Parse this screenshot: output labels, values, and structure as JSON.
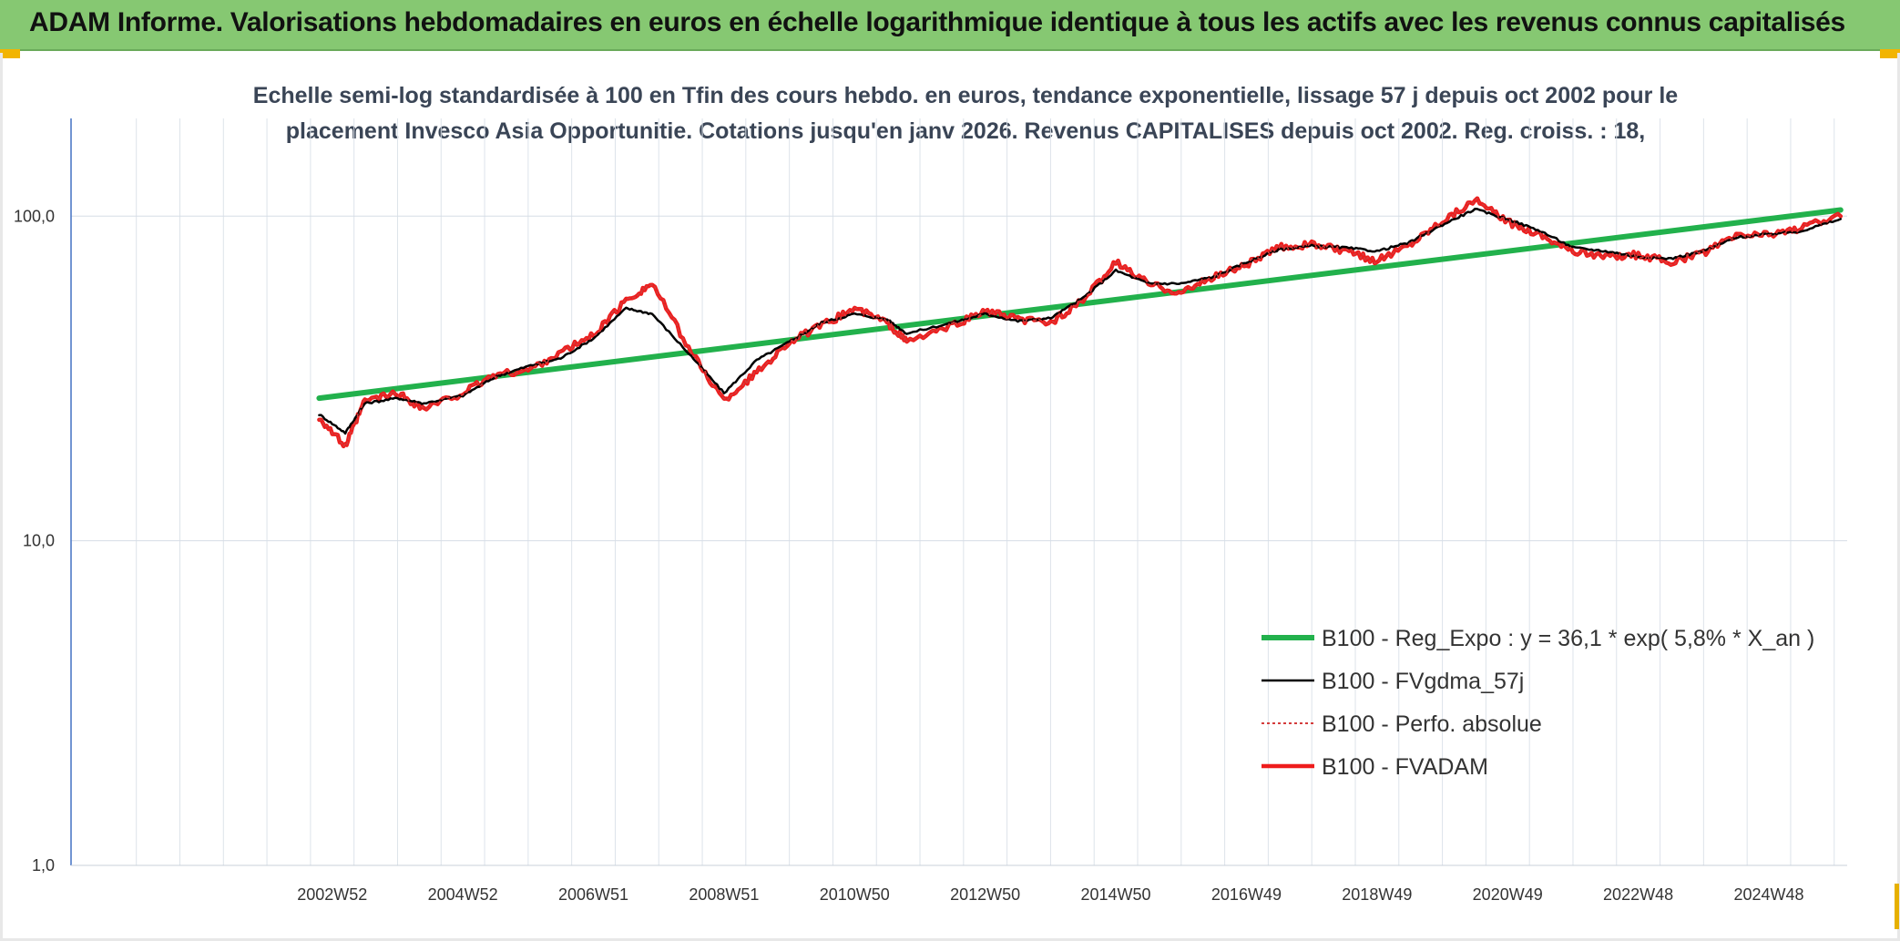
{
  "banner": {
    "title": "ADAM Informe. Valorisations hebdomadaires en euros en échelle logarithmique identique à tous les actifs avec les revenus connus capitalisés"
  },
  "chart_data": {
    "type": "line",
    "title_line1": "Echelle semi-log standardisée à 100 en Tfin des cours hebdo. en euros, tendance exponentielle, lissage 57 j depuis oct 2002 pour le",
    "title_line2": "placement Invesco Asia Opportunitie. Cotations jusqu'en janv 2026. Revenus CAPITALISES depuis oct 2002. Reg. croiss. : 18,",
    "y_scale": "log",
    "ylim": [
      1,
      200
    ],
    "y_ticks": [
      {
        "value": 1,
        "label": "1,0"
      },
      {
        "value": 10,
        "label": "10,0"
      },
      {
        "value": 100,
        "label": "100,0"
      }
    ],
    "xlim": [
      1999.0,
      2026.2
    ],
    "x_ticks": [
      {
        "x": 2003.0,
        "label": "2002W52"
      },
      {
        "x": 2005.0,
        "label": "2004W52"
      },
      {
        "x": 2007.0,
        "label": "2006W51"
      },
      {
        "x": 2009.0,
        "label": "2008W51"
      },
      {
        "x": 2011.0,
        "label": "2010W50"
      },
      {
        "x": 2013.0,
        "label": "2012W50"
      },
      {
        "x": 2015.0,
        "label": "2014W50"
      },
      {
        "x": 2017.0,
        "label": "2016W49"
      },
      {
        "x": 2019.0,
        "label": "2018W49"
      },
      {
        "x": 2021.0,
        "label": "2020W49"
      },
      {
        "x": 2023.0,
        "label": "2022W48"
      },
      {
        "x": 2025.0,
        "label": "2024W48"
      }
    ],
    "grid": true,
    "legend_position": "bottom-right",
    "series": [
      {
        "name": "B100 - Reg_Expo : y = 36,1 * exp( 5,8% *  X_an )",
        "color": "#22b14c",
        "style": "thick",
        "x": [
          2002.8,
          2026.1
        ],
        "y": [
          27.5,
          104.5
        ]
      },
      {
        "name": "B100 - FVgdma_57j",
        "color": "#000000",
        "style": "thin",
        "x": [
          2002.8,
          2003.2,
          2003.5,
          2004.0,
          2004.4,
          2005.0,
          2005.5,
          2006.0,
          2006.5,
          2007.0,
          2007.5,
          2007.9,
          2008.5,
          2009.0,
          2009.5,
          2010.0,
          2010.5,
          2011.0,
          2011.5,
          2011.8,
          2012.5,
          2013.0,
          2013.5,
          2014.0,
          2014.5,
          2015.0,
          2015.5,
          2016.0,
          2016.5,
          2017.0,
          2017.5,
          2018.0,
          2018.5,
          2019.0,
          2019.5,
          2020.0,
          2020.5,
          2021.0,
          2021.5,
          2022.0,
          2022.5,
          2023.0,
          2023.5,
          2024.0,
          2024.5,
          2025.0,
          2025.5,
          2026.1
        ],
        "y": [
          24.5,
          21.5,
          26.5,
          27.5,
          26.5,
          28.0,
          32.0,
          34.5,
          36.5,
          42.0,
          52.0,
          50.0,
          37.0,
          28.5,
          36.0,
          41.0,
          47.0,
          50.0,
          48.0,
          43.5,
          47.0,
          50.0,
          47.5,
          48.5,
          56.0,
          68.0,
          62.0,
          62.0,
          65.0,
          72.0,
          79.0,
          81.0,
          80.0,
          78.0,
          83.0,
          94.0,
          105.0,
          98.0,
          90.0,
          80.0,
          78.0,
          75.0,
          74.0,
          78.0,
          86.0,
          88.0,
          90.0,
          98.0
        ]
      },
      {
        "name": "B100 - Perfo. absolue",
        "color": "#d43c3c",
        "style": "dotted",
        "x": [
          2002.8,
          2003.2,
          2003.5,
          2004.0,
          2004.4,
          2005.0,
          2005.5,
          2006.0,
          2006.5,
          2007.0,
          2007.5,
          2007.9,
          2008.5,
          2009.0,
          2009.5,
          2010.0,
          2010.5,
          2011.0,
          2011.5,
          2011.8,
          2012.5,
          2013.0,
          2013.5,
          2014.0,
          2014.5,
          2015.0,
          2015.5,
          2016.0,
          2016.5,
          2017.0,
          2017.5,
          2018.0,
          2018.5,
          2019.0,
          2019.5,
          2020.0,
          2020.5,
          2021.0,
          2021.5,
          2022.0,
          2022.5,
          2023.0,
          2023.5,
          2024.0,
          2024.5,
          2025.0,
          2025.5,
          2026.1
        ],
        "y": [
          24.0,
          19.5,
          27.0,
          28.5,
          25.5,
          28.5,
          32.5,
          33.5,
          38.0,
          43.0,
          55.0,
          62.0,
          38.0,
          27.0,
          33.0,
          41.0,
          46.0,
          52.0,
          47.0,
          41.0,
          46.0,
          51.0,
          48.0,
          47.0,
          55.0,
          72.0,
          62.0,
          58.0,
          65.0,
          71.0,
          80.0,
          82.0,
          78.0,
          73.0,
          82.0,
          97.0,
          112.0,
          96.0,
          88.0,
          78.0,
          75.0,
          76.0,
          72.0,
          77.0,
          87.0,
          88.0,
          92.0,
          100.0
        ]
      },
      {
        "name": "B100 - FVADAM",
        "color": "#ee1c1c",
        "style": "thick",
        "x": [
          2002.8,
          2003.2,
          2003.5,
          2004.0,
          2004.4,
          2005.0,
          2005.5,
          2006.0,
          2006.5,
          2007.0,
          2007.5,
          2007.9,
          2008.5,
          2009.0,
          2009.5,
          2010.0,
          2010.5,
          2011.0,
          2011.5,
          2011.8,
          2012.5,
          2013.0,
          2013.5,
          2014.0,
          2014.5,
          2015.0,
          2015.5,
          2016.0,
          2016.5,
          2017.0,
          2017.5,
          2018.0,
          2018.5,
          2019.0,
          2019.5,
          2020.0,
          2020.5,
          2021.0,
          2021.5,
          2022.0,
          2022.5,
          2023.0,
          2023.5,
          2024.0,
          2024.5,
          2025.0,
          2025.5,
          2026.1
        ],
        "y": [
          24.0,
          19.5,
          27.0,
          28.5,
          25.5,
          28.5,
          32.5,
          33.5,
          38.0,
          43.0,
          55.0,
          62.0,
          38.0,
          27.0,
          33.0,
          41.0,
          46.0,
          52.0,
          47.0,
          41.0,
          46.0,
          51.0,
          48.0,
          47.0,
          55.0,
          72.0,
          62.0,
          58.0,
          65.0,
          71.0,
          80.0,
          82.0,
          78.0,
          73.0,
          82.0,
          97.0,
          112.0,
          96.0,
          88.0,
          78.0,
          75.0,
          76.0,
          72.0,
          77.0,
          87.0,
          88.0,
          92.0,
          100.0
        ]
      }
    ]
  }
}
